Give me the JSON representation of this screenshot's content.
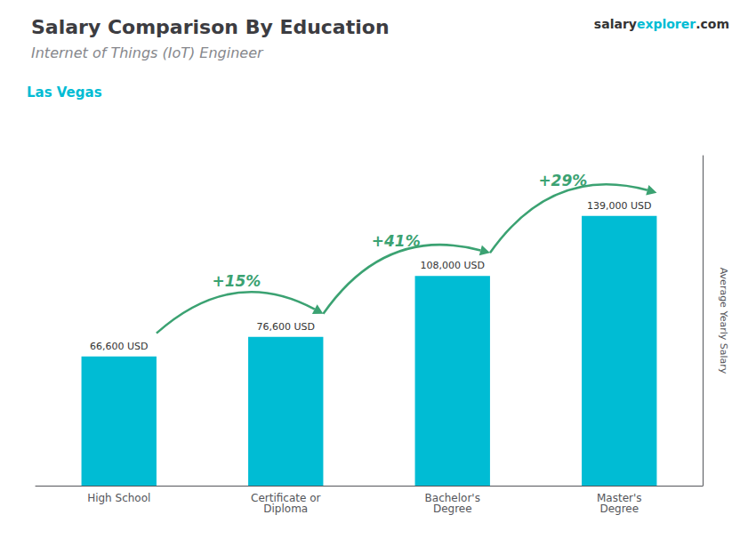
{
  "chart_data": {
    "type": "bar",
    "title": "Salary Comparison By Education",
    "subtitle": "Internet of Things (IoT) Engineer",
    "city": "Las Vegas",
    "site": [
      "salary",
      "explorer",
      ".com"
    ],
    "ylabel": "Average Yearly Salary",
    "categories": [
      "High School",
      "Certificate or\nDiploma",
      "Bachelor's\nDegree",
      "Master's\nDegree"
    ],
    "values": [
      66600,
      76600,
      108000,
      139000
    ],
    "value_labels": [
      "66,600 USD",
      "76,600 USD",
      "108,000 USD",
      "139,000 USD"
    ],
    "data_labels": true,
    "annotations": [
      "+15%",
      "+41%",
      "+29%"
    ],
    "color": "#00bcd4",
    "ylim": [
      0,
      170000
    ],
    "tick_labels": "x",
    "grid": false
  }
}
